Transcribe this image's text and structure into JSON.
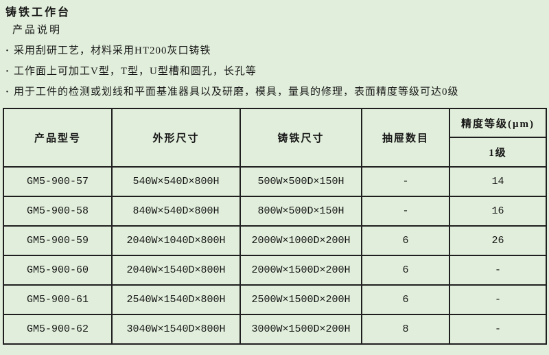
{
  "page": {
    "title": "铸铁工作台",
    "section_heading": "产品说明",
    "bullet_marker": "·",
    "bullets": [
      "采用刮研工艺，材料采用HT200灰口铸铁",
      "工作面上可加工V型，T型，U型槽和圆孔，长孔等",
      "用于工件的检测或划线和平面基准器具以及研磨，模具，量具的修理，表面精度等级可达0级"
    ]
  },
  "table": {
    "headers": {
      "model": "产品型号",
      "outer_size": "外形尺寸",
      "cast_iron_size": "铸铁尺寸",
      "drawer_count": "抽屉数目",
      "precision_group": "精度等级(μm)",
      "precision_sub": "1级"
    },
    "rows": [
      {
        "model": "GM5-900-57",
        "outer": "540W×540D×800H",
        "cast": "500W×500D×150H",
        "drawers": "-",
        "precision": "14"
      },
      {
        "model": "GM5-900-58",
        "outer": "840W×540D×800H",
        "cast": "800W×500D×150H",
        "drawers": "-",
        "precision": "16"
      },
      {
        "model": "GM5-900-59",
        "outer": "2040W×1040D×800H",
        "cast": "2000W×1000D×200H",
        "drawers": "6",
        "precision": "26"
      },
      {
        "model": "GM5-900-60",
        "outer": "2040W×1540D×800H",
        "cast": "2000W×1500D×200H",
        "drawers": "6",
        "precision": "-"
      },
      {
        "model": "GM5-900-61",
        "outer": "2540W×1540D×800H",
        "cast": "2500W×1500D×200H",
        "drawers": "6",
        "precision": "-"
      },
      {
        "model": "GM5-900-62",
        "outer": "3040W×1540D×800H",
        "cast": "3000W×1500D×200H",
        "drawers": "8",
        "precision": "-"
      }
    ]
  },
  "colors": {
    "background": "#e1eedb",
    "border": "#1f1f1f",
    "text": "#161616"
  }
}
